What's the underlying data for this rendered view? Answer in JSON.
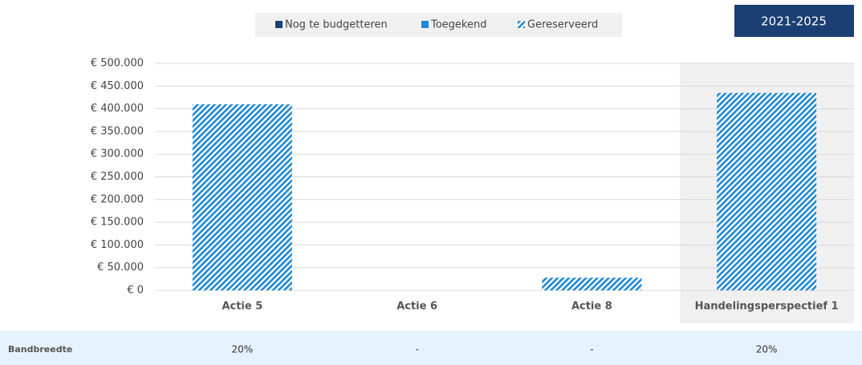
{
  "period": "2021-2025",
  "chart_data": {
    "type": "stacked_bar",
    "categories": [
      "Actie 5",
      "Actie 6",
      "Actie 8",
      "Handelingsperspectief 1"
    ],
    "series": [
      {
        "name": "Nog te budgetteren",
        "color": "#1c3f73",
        "values": [
          0,
          0,
          0,
          0
        ]
      },
      {
        "name": "Toegekend",
        "color": "#1e88d6",
        "values": [
          0,
          0,
          0,
          0
        ]
      },
      {
        "name": "Gereserveerd",
        "color": "#1e88d6",
        "hatch": true,
        "values": [
          410000,
          0,
          28000,
          435000
        ]
      }
    ],
    "ylim": [
      0,
      500000
    ],
    "yticks": [
      {
        "value": 0,
        "label": "€ 0"
      },
      {
        "value": 50000,
        "label": "€ 50.000"
      },
      {
        "value": 100000,
        "label": "€ 100.000"
      },
      {
        "value": 150000,
        "label": "€ 150.000"
      },
      {
        "value": 200000,
        "label": "€ 200.000"
      },
      {
        "value": 250000,
        "label": "€ 250.000"
      },
      {
        "value": 300000,
        "label": "€ 300.000"
      },
      {
        "value": 350000,
        "label": "€ 350.000"
      },
      {
        "value": 400000,
        "label": "€ 400.000"
      },
      {
        "value": 450000,
        "label": "€ 450.000"
      },
      {
        "value": 500000,
        "label": "€ 500.000"
      }
    ],
    "grid": true,
    "highlight_index": 3,
    "legend": "top"
  },
  "band_row": {
    "label": "Bandbreedte",
    "cells": [
      "20%",
      "-",
      "-",
      "20%"
    ]
  }
}
